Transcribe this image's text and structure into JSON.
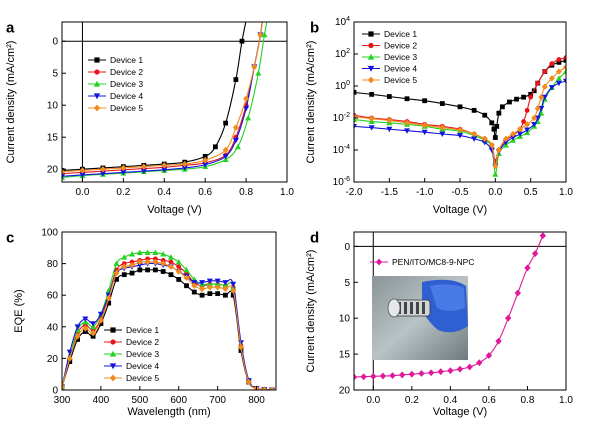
{
  "colors": {
    "Device 1": "#000000",
    "Device 2": "#e8141b",
    "Device 3": "#22d322",
    "Device 4": "#1414e0",
    "Device 5": "#f08c1e",
    "PEN/ITO/MC8-9-NPC": "#e0189a"
  },
  "markers": {
    "Device 1": "square",
    "Device 2": "circle",
    "Device 3": "triangle-up",
    "Device 4": "triangle-down",
    "Device 5": "diamond",
    "PEN/ITO/MC8-9-NPC": "diamond"
  },
  "chart_data": [
    {
      "panel": "a",
      "type": "line",
      "xlabel": "Voltage (V)",
      "ylabel": "Current density (mA/cm²)",
      "xlim": [
        -0.1,
        1.0
      ],
      "ylim": [
        22,
        -3
      ],
      "y_inverted": true,
      "x_ticks": [
        "0.0",
        "0.2",
        "0.4",
        "0.6",
        "0.8",
        "1.0"
      ],
      "y_ticks": [
        "20",
        "15",
        "10",
        "5",
        "0"
      ],
      "legend_position": "left",
      "series": [
        {
          "name": "Device 1",
          "x": [
            -0.1,
            0,
            0.1,
            0.2,
            0.3,
            0.4,
            0.5,
            0.6,
            0.65,
            0.7,
            0.75,
            0.78,
            0.81,
            0.84
          ],
          "y": [
            20.2,
            20.0,
            19.8,
            19.6,
            19.4,
            19.2,
            18.9,
            18.0,
            16.5,
            12.8,
            6.0,
            0.0,
            -5,
            -12
          ]
        },
        {
          "name": "Device 2",
          "x": [
            -0.1,
            0,
            0.1,
            0.2,
            0.3,
            0.4,
            0.5,
            0.6,
            0.7,
            0.75,
            0.8,
            0.84,
            0.87,
            0.9
          ],
          "y": [
            20.7,
            20.5,
            20.3,
            20.1,
            19.9,
            19.7,
            19.4,
            19.0,
            17.8,
            15.0,
            10.0,
            4.0,
            -1,
            -8
          ]
        },
        {
          "name": "Device 3",
          "x": [
            -0.1,
            0,
            0.1,
            0.2,
            0.3,
            0.4,
            0.5,
            0.6,
            0.7,
            0.76,
            0.81,
            0.86,
            0.89,
            0.93
          ],
          "y": [
            21.3,
            21.0,
            20.8,
            20.6,
            20.4,
            20.2,
            20.0,
            19.6,
            18.5,
            16.5,
            12.0,
            5.0,
            -1,
            -8
          ]
        },
        {
          "name": "Device 4",
          "x": [
            -0.1,
            0,
            0.1,
            0.2,
            0.3,
            0.4,
            0.5,
            0.6,
            0.7,
            0.75,
            0.8,
            0.84,
            0.87,
            0.9
          ],
          "y": [
            21.1,
            20.9,
            20.7,
            20.5,
            20.3,
            20.1,
            19.8,
            19.3,
            18.0,
            15.5,
            10.5,
            4.0,
            -1,
            -8
          ]
        },
        {
          "name": "Device 5",
          "x": [
            -0.1,
            0,
            0.1,
            0.2,
            0.3,
            0.4,
            0.5,
            0.6,
            0.7,
            0.75,
            0.8,
            0.84,
            0.87,
            0.9
          ],
          "y": [
            20.4,
            20.2,
            20.0,
            19.8,
            19.6,
            19.4,
            19.2,
            18.6,
            17.0,
            13.5,
            9.0,
            4.0,
            -1,
            -8
          ]
        }
      ]
    },
    {
      "panel": "b",
      "type": "line",
      "xlabel": "Voltage (V)",
      "ylabel": "Current density (mA/cm²)",
      "y_scale": "log",
      "xlim": [
        -2.0,
        1.0
      ],
      "ylim": [
        1e-06,
        10000.0
      ],
      "x_ticks": [
        "-2.0",
        "-1.5",
        "-1.0",
        "-0.5",
        "0.0",
        "0.5",
        "1.0"
      ],
      "y_ticks": [
        1e-06,
        0.0001,
        0.01,
        1.0,
        100.0,
        10000.0
      ],
      "legend_position": "top-left",
      "series": [
        {
          "name": "Device 1",
          "x": [
            -2.0,
            -1.75,
            -1.5,
            -1.25,
            -1.0,
            -0.75,
            -0.5,
            -0.3,
            -0.15,
            -0.05,
            -0.02,
            0.0,
            0.02,
            0.05,
            0.1,
            0.2,
            0.3,
            0.4,
            0.5,
            0.55,
            0.6,
            0.7,
            0.8,
            0.9,
            1.0
          ],
          "y": [
            0.4,
            0.3,
            0.22,
            0.16,
            0.12,
            0.08,
            0.05,
            0.03,
            0.015,
            0.005,
            0.002,
            0.0006,
            0.003,
            0.02,
            0.05,
            0.1,
            0.15,
            0.2,
            0.3,
            0.5,
            1.5,
            8,
            20,
            30,
            40
          ]
        },
        {
          "name": "Device 2",
          "x": [
            -2.0,
            -1.75,
            -1.5,
            -1.25,
            -1.0,
            -0.75,
            -0.5,
            -0.3,
            -0.15,
            -0.05,
            0.0,
            0.05,
            0.15,
            0.25,
            0.35,
            0.4,
            0.45,
            0.5,
            0.6,
            0.7,
            0.8,
            0.9,
            1.0
          ],
          "y": [
            0.015,
            0.01,
            0.008,
            0.006,
            0.004,
            0.003,
            0.002,
            0.001,
            0.0005,
            0.0002,
            2e-05,
            0.0001,
            0.0004,
            0.0008,
            0.002,
            0.006,
            0.03,
            0.2,
            1.5,
            8,
            25,
            45,
            60
          ]
        },
        {
          "name": "Device 3",
          "x": [
            -2.0,
            -1.75,
            -1.5,
            -1.25,
            -1.0,
            -0.75,
            -0.5,
            -0.3,
            -0.15,
            -0.05,
            0.0,
            0.05,
            0.15,
            0.25,
            0.35,
            0.45,
            0.55,
            0.6,
            0.65,
            0.7,
            0.8,
            0.9,
            1.0
          ],
          "y": [
            0.008,
            0.006,
            0.005,
            0.004,
            0.003,
            0.002,
            0.0015,
            0.0008,
            0.0004,
            0.00015,
            3e-06,
            6e-05,
            0.0002,
            0.0004,
            0.0007,
            0.0012,
            0.003,
            0.006,
            0.02,
            0.15,
            0.8,
            3,
            8
          ]
        },
        {
          "name": "Device 4",
          "x": [
            -2.0,
            -1.75,
            -1.5,
            -1.25,
            -1.0,
            -0.75,
            -0.5,
            -0.3,
            -0.15,
            -0.05,
            0.0,
            0.05,
            0.15,
            0.25,
            0.35,
            0.45,
            0.55,
            0.6,
            0.65,
            0.7,
            0.8,
            0.9,
            1.0
          ],
          "y": [
            0.003,
            0.0025,
            0.002,
            0.0016,
            0.0013,
            0.001,
            0.0008,
            0.0005,
            0.0003,
            0.0001,
            1e-05,
            8e-05,
            0.0003,
            0.0006,
            0.001,
            0.0018,
            0.004,
            0.01,
            0.04,
            0.2,
            0.8,
            1.5,
            2
          ]
        },
        {
          "name": "Device 5",
          "x": [
            -2.0,
            -1.75,
            -1.5,
            -1.25,
            -1.0,
            -0.75,
            -0.5,
            -0.3,
            -0.15,
            -0.05,
            0.0,
            0.05,
            0.15,
            0.25,
            0.35,
            0.45,
            0.55,
            0.6,
            0.65,
            0.7,
            0.8,
            0.9,
            1.0
          ],
          "y": [
            0.012,
            0.009,
            0.007,
            0.005,
            0.0035,
            0.0025,
            0.0018,
            0.001,
            0.0005,
            0.0002,
            1e-05,
            0.0001,
            0.0005,
            0.001,
            0.002,
            0.004,
            0.01,
            0.04,
            0.2,
            0.9,
            3,
            8,
            15
          ]
        }
      ]
    },
    {
      "panel": "c",
      "type": "line",
      "xlabel": "Wavelength (nm)",
      "ylabel": "EQE (%)",
      "xlim": [
        300,
        850
      ],
      "ylim": [
        0,
        100
      ],
      "x_ticks": [
        "300",
        "400",
        "500",
        "600",
        "700",
        "800"
      ],
      "y_ticks": [
        "0",
        "20",
        "40",
        "60",
        "80",
        "100"
      ],
      "legend_position": "bottom-left",
      "series": [
        {
          "name": "Device 1",
          "x": [
            300,
            320,
            340,
            360,
            380,
            400,
            420,
            440,
            460,
            480,
            500,
            520,
            540,
            560,
            580,
            600,
            620,
            640,
            660,
            680,
            700,
            720,
            740,
            760,
            780,
            800,
            820,
            840
          ],
          "y": [
            2,
            18,
            32,
            37,
            34,
            42,
            55,
            70,
            73,
            74,
            76,
            76,
            76,
            75,
            73,
            70,
            66,
            62,
            60,
            61,
            61,
            60,
            60,
            25,
            5,
            1,
            0.3,
            0
          ]
        },
        {
          "name": "Device 2",
          "x": [
            300,
            320,
            340,
            360,
            380,
            400,
            420,
            440,
            460,
            480,
            500,
            520,
            540,
            560,
            580,
            600,
            620,
            640,
            660,
            680,
            700,
            720,
            740,
            760,
            780,
            800,
            820,
            840
          ],
          "y": [
            2,
            20,
            36,
            41,
            38,
            45,
            60,
            76,
            80,
            81,
            82,
            83,
            83,
            82,
            81,
            78,
            74,
            68,
            66,
            67,
            67,
            66,
            65,
            28,
            6,
            1,
            0.3,
            0
          ]
        },
        {
          "name": "Device 3",
          "x": [
            300,
            320,
            340,
            360,
            380,
            400,
            420,
            440,
            460,
            480,
            500,
            520,
            540,
            560,
            580,
            600,
            620,
            640,
            660,
            680,
            700,
            720,
            740,
            760,
            780,
            800,
            820,
            840
          ],
          "y": [
            2,
            21,
            38,
            43,
            40,
            48,
            63,
            80,
            84,
            86,
            87,
            87,
            87,
            86,
            84,
            81,
            76,
            70,
            67,
            67,
            67,
            66,
            65,
            28,
            6,
            1,
            0.3,
            0
          ]
        },
        {
          "name": "Device 4",
          "x": [
            300,
            320,
            340,
            360,
            380,
            400,
            420,
            440,
            460,
            480,
            500,
            520,
            540,
            560,
            580,
            600,
            620,
            640,
            660,
            680,
            700,
            720,
            740,
            760,
            780,
            800,
            820,
            840
          ],
          "y": [
            2,
            24,
            40,
            45,
            42,
            48,
            60,
            74,
            77,
            78,
            79,
            80,
            80,
            79,
            78,
            75,
            72,
            68,
            68,
            69,
            69,
            68,
            67,
            30,
            6,
            1,
            0.3,
            0
          ]
        },
        {
          "name": "Device 5",
          "x": [
            300,
            320,
            340,
            360,
            380,
            400,
            420,
            440,
            460,
            480,
            500,
            520,
            540,
            560,
            580,
            600,
            620,
            640,
            660,
            680,
            700,
            720,
            740,
            760,
            780,
            800,
            820,
            840
          ],
          "y": [
            2,
            20,
            34,
            39,
            36,
            44,
            58,
            74,
            78,
            79,
            81,
            81,
            81,
            80,
            78,
            75,
            71,
            66,
            64,
            65,
            65,
            64,
            63,
            27,
            5,
            1,
            0.3,
            0
          ]
        }
      ]
    },
    {
      "panel": "d",
      "type": "line",
      "xlabel": "Voltage (V)",
      "ylabel": "Current density (mA/cm²)",
      "xlim": [
        -0.1,
        1.0
      ],
      "ylim": [
        20,
        -2
      ],
      "y_inverted": true,
      "x_ticks": [
        "0.0",
        "0.2",
        "0.4",
        "0.6",
        "0.8",
        "1.0"
      ],
      "y_ticks": [
        "0",
        "5",
        "10",
        "15",
        "20"
      ],
      "legend_position": "top-left",
      "inset": "photo of a flexible device held by a gloved hand",
      "series": [
        {
          "name": "PEN/ITO/MC8-9-NPC",
          "x": [
            -0.1,
            -0.05,
            0.0,
            0.05,
            0.1,
            0.15,
            0.2,
            0.25,
            0.3,
            0.35,
            0.4,
            0.45,
            0.5,
            0.55,
            0.6,
            0.65,
            0.7,
            0.75,
            0.8,
            0.84,
            0.88
          ],
          "y": [
            18.2,
            18.15,
            18.1,
            18.05,
            18.0,
            17.9,
            17.8,
            17.7,
            17.6,
            17.45,
            17.3,
            17.1,
            16.8,
            16.2,
            15.2,
            13.2,
            10.0,
            6.5,
            3.0,
            1.0,
            -1.5
          ]
        }
      ]
    }
  ],
  "panel_labels": [
    "a",
    "b",
    "c",
    "d"
  ]
}
